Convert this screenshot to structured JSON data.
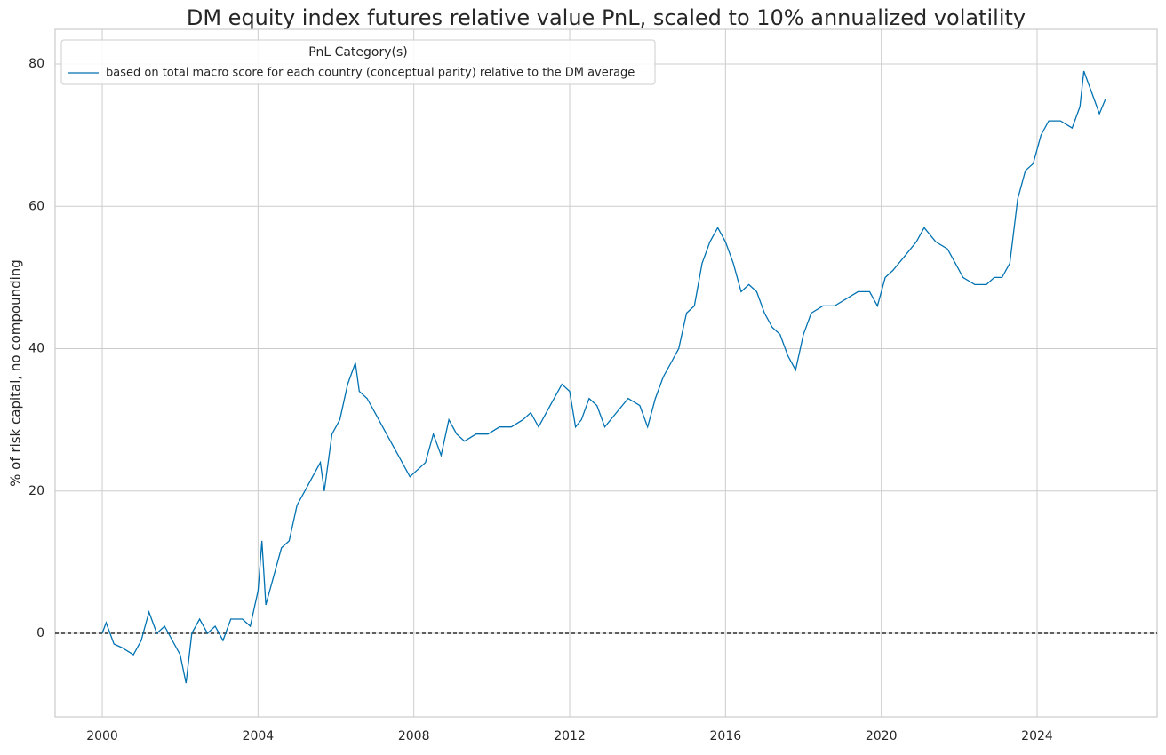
{
  "chart_data": {
    "type": "line",
    "title": "DM equity index futures relative value PnL, scaled to 10% annualized volatility",
    "y_label": "% of risk capital, no compounding",
    "legend_title": "PnL Category(s)",
    "legend": "upper left",
    "grid": true,
    "hline": 0,
    "xlim": [
      1998.79,
      2027.08
    ],
    "ylim": [
      -11.73,
      84.87
    ],
    "xticks": [
      2000,
      2004,
      2008,
      2012,
      2016,
      2020,
      2024
    ],
    "yticks": [
      0,
      20,
      40,
      60,
      80
    ],
    "x": [
      2000.0,
      2000.1,
      2000.3,
      2000.5,
      2000.8,
      2001.0,
      2001.2,
      2001.4,
      2001.6,
      2001.8,
      2002.0,
      2002.15,
      2002.3,
      2002.5,
      2002.7,
      2002.9,
      2003.1,
      2003.3,
      2003.6,
      2003.8,
      2004.0,
      2004.1,
      2004.2,
      2004.4,
      2004.6,
      2004.8,
      2005.0,
      2005.2,
      2005.4,
      2005.6,
      2005.7,
      2005.9,
      2006.1,
      2006.3,
      2006.5,
      2006.6,
      2006.8,
      2007.0,
      2007.3,
      2007.6,
      2007.9,
      2008.1,
      2008.3,
      2008.5,
      2008.7,
      2008.9,
      2009.1,
      2009.3,
      2009.6,
      2009.9,
      2010.2,
      2010.5,
      2010.8,
      2011.0,
      2011.2,
      2011.5,
      2011.8,
      2012.0,
      2012.15,
      2012.3,
      2012.5,
      2012.7,
      2012.9,
      2013.2,
      2013.5,
      2013.8,
      2014.0,
      2014.2,
      2014.4,
      2014.6,
      2014.8,
      2015.0,
      2015.2,
      2015.4,
      2015.6,
      2015.8,
      2016.0,
      2016.2,
      2016.4,
      2016.6,
      2016.8,
      2017.0,
      2017.2,
      2017.4,
      2017.6,
      2017.8,
      2018.0,
      2018.2,
      2018.5,
      2018.8,
      2019.1,
      2019.4,
      2019.7,
      2019.9,
      2020.1,
      2020.3,
      2020.6,
      2020.9,
      2021.1,
      2021.4,
      2021.7,
      2021.9,
      2022.1,
      2022.4,
      2022.7,
      2022.9,
      2023.1,
      2023.3,
      2023.5,
      2023.7,
      2023.9,
      2024.1,
      2024.3,
      2024.6,
      2024.9,
      2025.1,
      2025.2,
      2025.4,
      2025.6,
      2025.75
    ],
    "series": [
      {
        "name": "based on total macro score for each country (conceptual parity) relative to the DM average",
        "color": "#0072b2",
        "values": [
          0,
          1.5,
          -1.5,
          -2,
          -3,
          -1,
          3,
          0,
          1,
          -1,
          -3,
          -7,
          0,
          2,
          0,
          1,
          -1,
          2,
          2,
          1,
          6,
          13,
          4,
          8,
          12,
          13,
          18,
          20,
          22,
          24,
          20,
          28,
          30,
          35,
          38,
          34,
          33,
          31,
          28,
          25,
          22,
          23,
          24,
          28,
          25,
          30,
          28,
          27,
          28,
          28,
          29,
          29,
          30,
          31,
          29,
          32,
          35,
          34,
          29,
          30,
          33,
          32,
          29,
          31,
          33,
          32,
          29,
          33,
          36,
          38,
          40,
          45,
          46,
          52,
          55,
          57,
          55,
          52,
          48,
          49,
          48,
          45,
          43,
          42,
          39,
          37,
          42,
          45,
          46,
          46,
          47,
          48,
          48,
          46,
          50,
          51,
          53,
          55,
          57,
          55,
          54,
          52,
          50,
          49,
          49,
          50,
          50,
          52,
          61,
          65,
          66,
          70,
          72,
          72,
          71,
          74,
          79,
          76,
          73,
          75
        ]
      }
    ]
  }
}
